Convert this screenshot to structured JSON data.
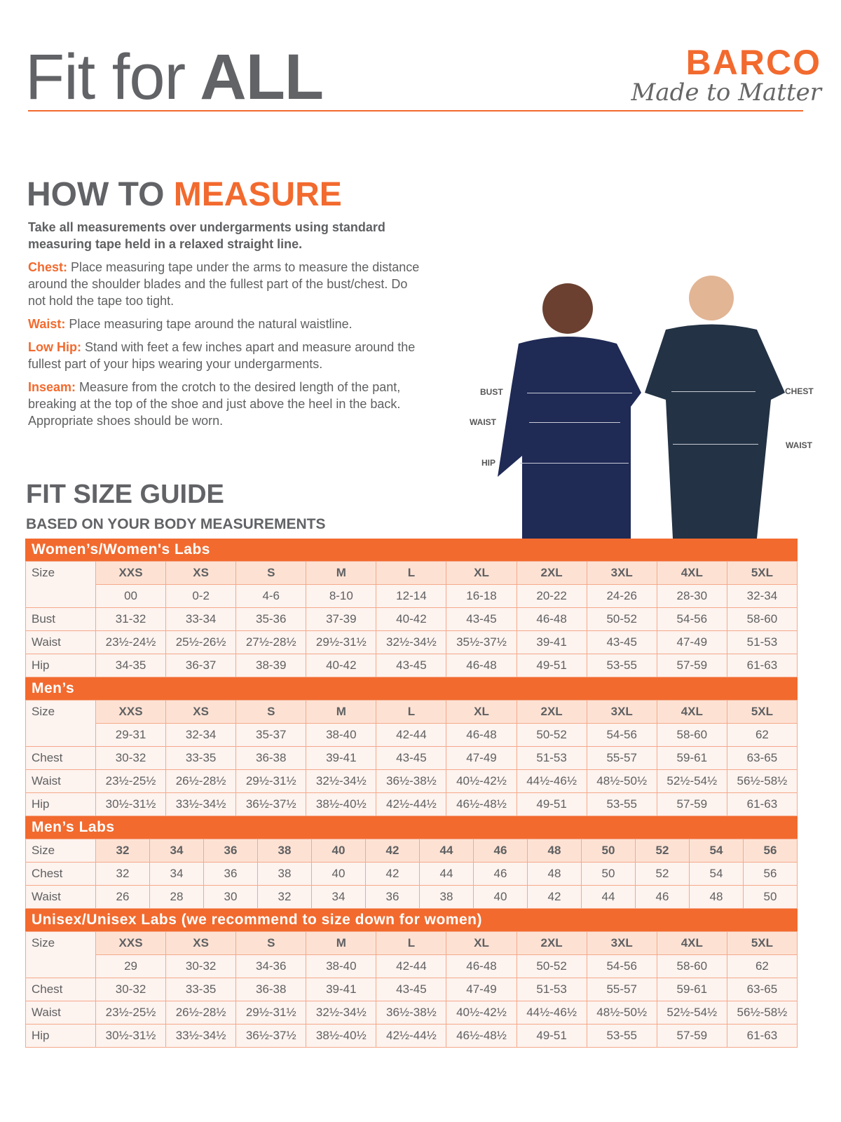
{
  "header": {
    "title_light": "Fit for",
    "title_bold": "ALL",
    "brand": "BARCO",
    "tagline": "Made to Matter"
  },
  "how": {
    "title_a": "HOW TO",
    "title_b": "MEASURE",
    "lead": "Take all measurements over undergarments using standard measuring tape held in a relaxed straight line.",
    "items": [
      {
        "key": "Chest:",
        "text": "Place measuring tape under the arms to measure the distance around the shoulder blades and the fullest part of the bust/chest. Do not hold the tape too tight."
      },
      {
        "key": "Waist:",
        "text": "Place measuring tape around the natural waistline."
      },
      {
        "key": "Low Hip:",
        "text": "Stand with feet a few inches apart and measure around the fullest part of your hips wearing your undergarments."
      },
      {
        "key": "Inseam:",
        "text": "Measure from the crotch to the desired length of the pant, breaking at the top of the shoe and just above the heel in the back. Appropriate shoes should be worn."
      }
    ]
  },
  "photo_labels": {
    "bust": "BUST",
    "waist_w": "WAIST",
    "hip": "HIP",
    "chest": "CHEST",
    "waist_m": "WAIST"
  },
  "guide": {
    "title": "FIT SIZE GUIDE",
    "subtitle": "BASED ON YOUR BODY MEASUREMENTS"
  },
  "tables": [
    {
      "title": "Women’s/Women's Labs",
      "size_label": "Size",
      "sizes": [
        "XXS",
        "XS",
        "S",
        "M",
        "L",
        "XL",
        "2XL",
        "3XL",
        "4XL",
        "5XL"
      ],
      "rows": [
        {
          "label": "",
          "values": [
            "00",
            "0-2",
            "4-6",
            "8-10",
            "12-14",
            "16-18",
            "20-22",
            "24-26",
            "28-30",
            "32-34"
          ]
        },
        {
          "label": "Bust",
          "values": [
            "31-32",
            "33-34",
            "35-36",
            "37-39",
            "40-42",
            "43-45",
            "46-48",
            "50-52",
            "54-56",
            "58-60"
          ]
        },
        {
          "label": "Waist",
          "values": [
            "23½-24½",
            "25½-26½",
            "27½-28½",
            "29½-31½",
            "32½-34½",
            "35½-37½",
            "39-41",
            "43-45",
            "47-49",
            "51-53"
          ]
        },
        {
          "label": "Hip",
          "values": [
            "34-35",
            "36-37",
            "38-39",
            "40-42",
            "43-45",
            "46-48",
            "49-51",
            "53-55",
            "57-59",
            "61-63"
          ]
        }
      ]
    },
    {
      "title": "Men’s",
      "size_label": "Size",
      "sizes": [
        "XXS",
        "XS",
        "S",
        "M",
        "L",
        "XL",
        "2XL",
        "3XL",
        "4XL",
        "5XL"
      ],
      "rows": [
        {
          "label": "",
          "values": [
            "29-31",
            "32-34",
            "35-37",
            "38-40",
            "42-44",
            "46-48",
            "50-52",
            "54-56",
            "58-60",
            "62"
          ]
        },
        {
          "label": "Chest",
          "values": [
            "30-32",
            "33-35",
            "36-38",
            "39-41",
            "43-45",
            "47-49",
            "51-53",
            "55-57",
            "59-61",
            "63-65"
          ]
        },
        {
          "label": "Waist",
          "values": [
            "23½-25½",
            "26½-28½",
            "29½-31½",
            "32½-34½",
            "36½-38½",
            "40½-42½",
            "44½-46½",
            "48½-50½",
            "52½-54½",
            "56½-58½"
          ]
        },
        {
          "label": "Hip",
          "values": [
            "30½-31½",
            "33½-34½",
            "36½-37½",
            "38½-40½",
            "42½-44½",
            "46½-48½",
            "49-51",
            "53-55",
            "57-59",
            "61-63"
          ]
        }
      ]
    },
    {
      "title": "Men’s Labs",
      "size_label": "Size",
      "sizes": [
        "32",
        "34",
        "36",
        "38",
        "40",
        "42",
        "44",
        "46",
        "48",
        "50",
        "52",
        "54",
        "56"
      ],
      "rows": [
        {
          "label": "Chest",
          "values": [
            "32",
            "34",
            "36",
            "38",
            "40",
            "42",
            "44",
            "46",
            "48",
            "50",
            "52",
            "54",
            "56"
          ]
        },
        {
          "label": "Waist",
          "values": [
            "26",
            "28",
            "30",
            "32",
            "34",
            "36",
            "38",
            "40",
            "42",
            "44",
            "46",
            "48",
            "50"
          ]
        }
      ]
    },
    {
      "title": "Unisex/Unisex Labs (we recommend to size down for women)",
      "size_label": "Size",
      "sizes": [
        "XXS",
        "XS",
        "S",
        "M",
        "L",
        "XL",
        "2XL",
        "3XL",
        "4XL",
        "5XL"
      ],
      "rows": [
        {
          "label": "",
          "values": [
            "29",
            "30-32",
            "34-36",
            "38-40",
            "42-44",
            "46-48",
            "50-52",
            "54-56",
            "58-60",
            "62"
          ]
        },
        {
          "label": "Chest",
          "values": [
            "30-32",
            "33-35",
            "36-38",
            "39-41",
            "43-45",
            "47-49",
            "51-53",
            "55-57",
            "59-61",
            "63-65"
          ]
        },
        {
          "label": "Waist",
          "values": [
            "23½-25½",
            "26½-28½",
            "29½-31½",
            "32½-34½",
            "36½-38½",
            "40½-42½",
            "44½-46½",
            "48½-50½",
            "52½-54½",
            "56½-58½"
          ]
        },
        {
          "label": "Hip",
          "values": [
            "30½-31½",
            "33½-34½",
            "36½-37½",
            "38½-40½",
            "42½-44½",
            "46½-48½",
            "49-51",
            "53-55",
            "57-59",
            "61-63"
          ]
        }
      ]
    }
  ],
  "colors": {
    "accent": "#f26a2e",
    "text": "#626366",
    "size_cell": "#fde2d4",
    "cell": "#fdf3ef",
    "scrub": "#1f2a55"
  }
}
